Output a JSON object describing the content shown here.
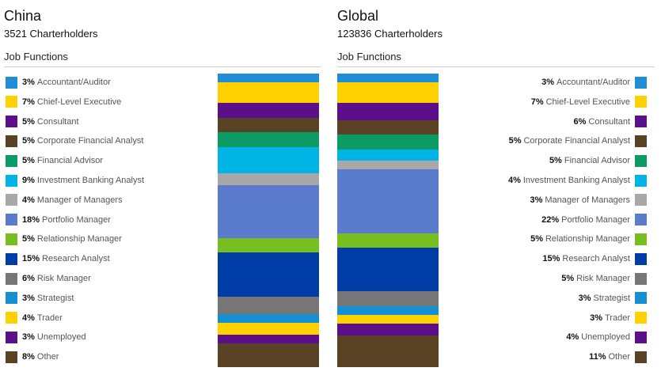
{
  "colors": {
    "Accountant/Auditor": "#1f8ed6",
    "Chief-Level Executive": "#ffd100",
    "Consultant": "#5c0f8b",
    "Corporate Financial Analyst": "#5a4324",
    "Financial Advisor": "#0c9a65",
    "Investment Banking Analyst": "#00b4e5",
    "Manager of Managers": "#a8a8a8",
    "Portfolio Manager": "#5b7bcd",
    "Relationship Manager": "#78be21",
    "Research Analyst": "#003da6",
    "Risk Manager": "#767676",
    "Strategist": "#1590d3",
    "Trader": "#ffd100",
    "Unemployed": "#5c0f8b",
    "Other": "#5a4324"
  },
  "chart_data": [
    {
      "type": "bar",
      "stacked": true,
      "title": "China",
      "subtitle": "3521 Charterholders",
      "section": "Job Functions",
      "legend_position": "left",
      "categories": [
        "Accountant/Auditor",
        "Chief-Level Executive",
        "Consultant",
        "Corporate Financial Analyst",
        "Financial Advisor",
        "Investment Banking Analyst",
        "Manager of Managers",
        "Portfolio Manager",
        "Relationship Manager",
        "Research Analyst",
        "Risk Manager",
        "Strategist",
        "Trader",
        "Unemployed",
        "Other"
      ],
      "values": [
        3,
        7,
        5,
        5,
        5,
        9,
        4,
        18,
        5,
        15,
        6,
        3,
        4,
        3,
        8
      ],
      "labels": [
        "3%",
        "7%",
        "5%",
        "5%",
        "5%",
        "9%",
        "4%",
        "18%",
        "5%",
        "15%",
        "6%",
        "3%",
        "4%",
        "3%",
        "8%"
      ]
    },
    {
      "type": "bar",
      "stacked": true,
      "title": "Global",
      "subtitle": "123836 Charterholders",
      "section": "Job Functions",
      "legend_position": "right",
      "categories": [
        "Accountant/Auditor",
        "Chief-Level Executive",
        "Consultant",
        "Corporate Financial Analyst",
        "Financial Advisor",
        "Investment Banking Analyst",
        "Manager of Managers",
        "Portfolio Manager",
        "Relationship Manager",
        "Research Analyst",
        "Risk Manager",
        "Strategist",
        "Trader",
        "Unemployed",
        "Other"
      ],
      "values": [
        3,
        7,
        6,
        5,
        5,
        4,
        3,
        22,
        5,
        15,
        5,
        3,
        3,
        4,
        11
      ],
      "labels": [
        "3%",
        "7%",
        "6%",
        "5%",
        "5%",
        "4%",
        "3%",
        "22%",
        "5%",
        "15%",
        "5%",
        "3%",
        "3%",
        "4%",
        "11%"
      ]
    }
  ]
}
